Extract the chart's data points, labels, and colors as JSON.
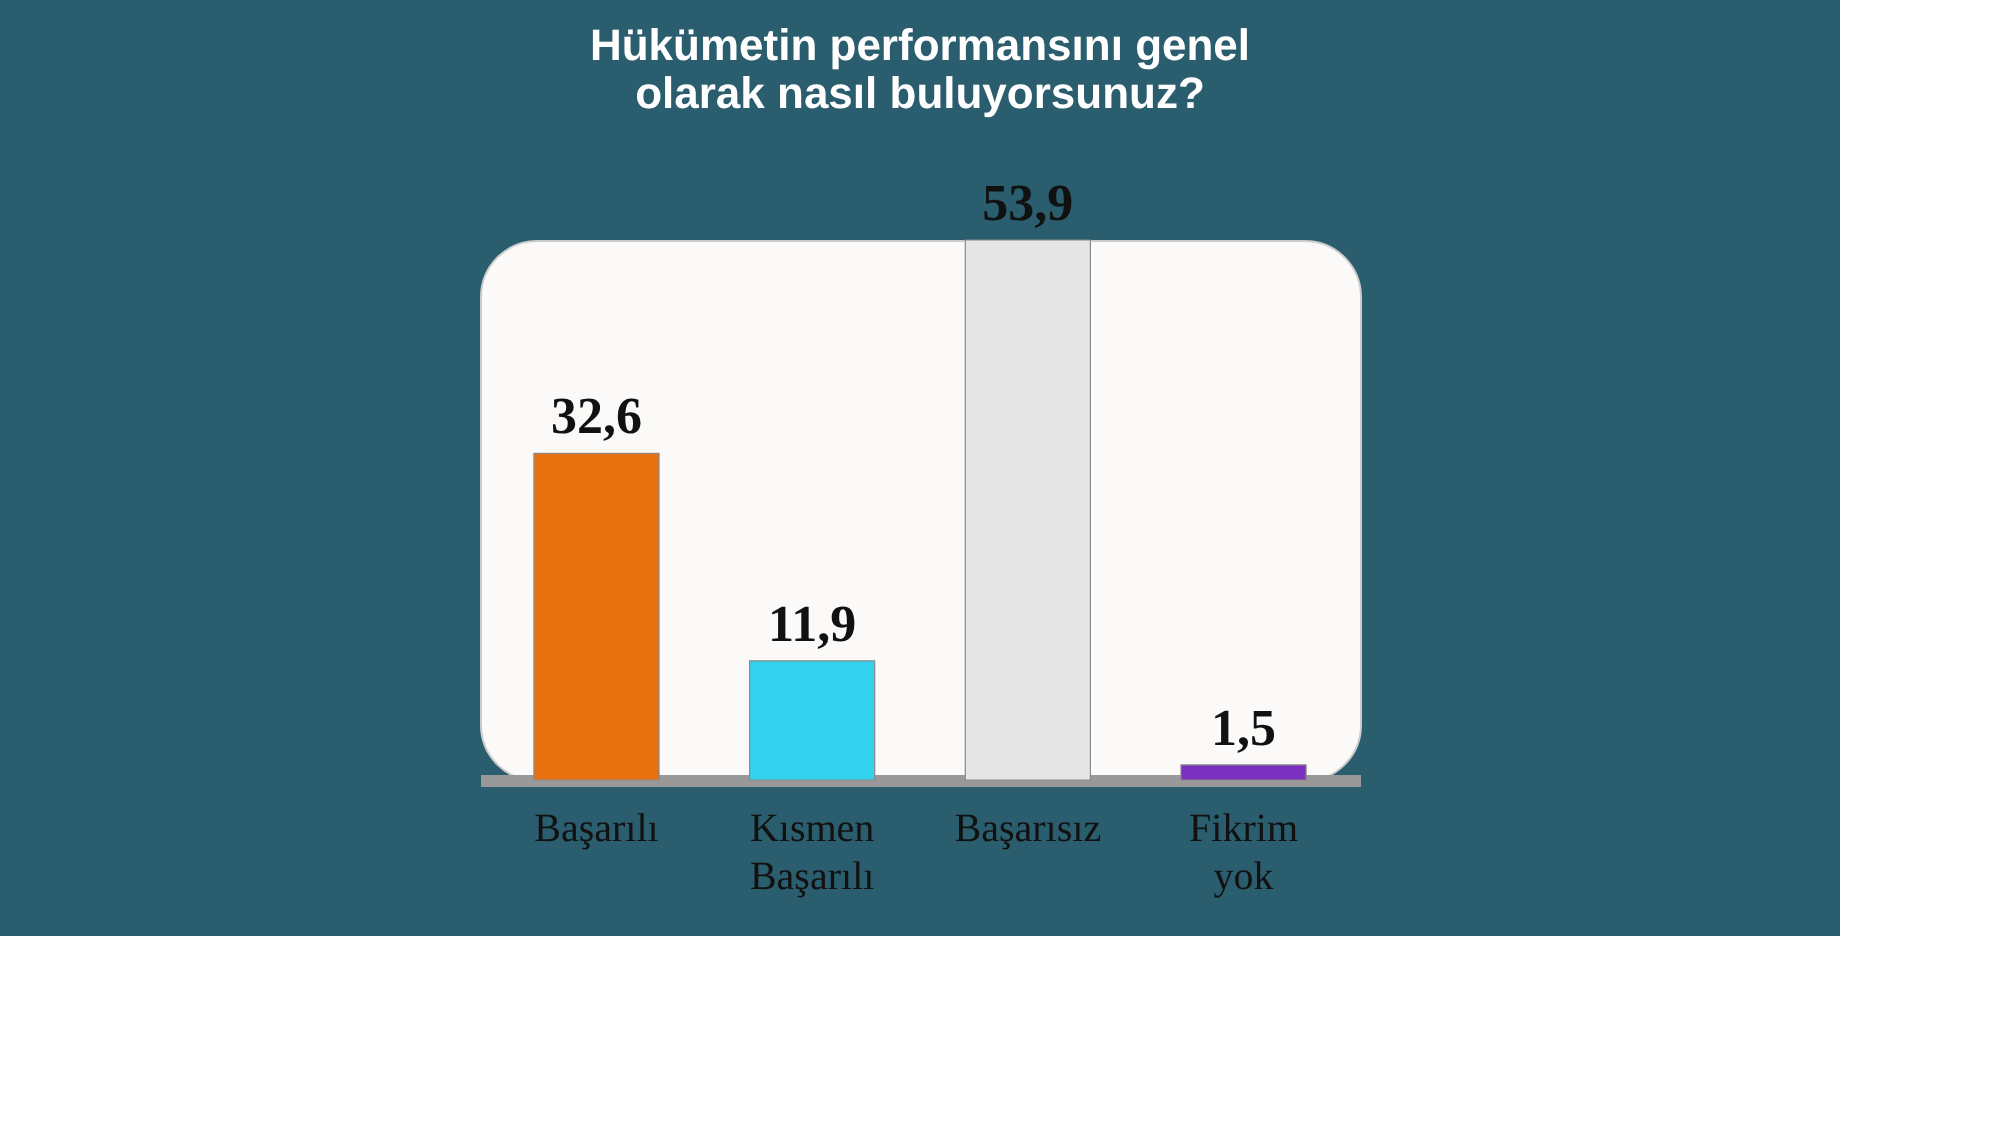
{
  "chart_data": {
    "type": "bar",
    "title": [
      "Hükümetin performansını genel",
      "olarak nasıl buluyorsunuz?"
    ],
    "categories": [
      "Başarılı",
      "Kısmen Başarılı",
      "Başarısız",
      "Fikrim yok"
    ],
    "values": [
      32.6,
      11.9,
      53.9,
      1.5
    ],
    "colors": [
      "#e8700f",
      "#33d2ee",
      "#e6e6e6",
      "#7b2fbe"
    ],
    "value_labels": [
      "32,6",
      "11,9",
      "53,9",
      "1,5"
    ],
    "tick_labels": "x",
    "grid": false
  }
}
